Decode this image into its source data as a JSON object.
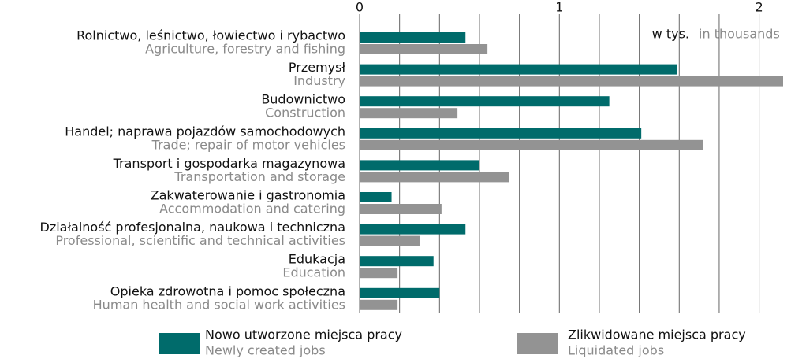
{
  "chart_data": {
    "type": "bar",
    "orientation": "horizontal",
    "categories": [
      "Rolnictwo, leśnictwo, łowiectwo i rybactwo",
      "Przemysł",
      "Budownictwo",
      "Handel;  naprawa pojazdów samochodowych",
      "Transport i gospodarka magazynowa",
      "Zakwaterowanie i gastronomia",
      "Działalność profesjonalna, naukowa i techniczna",
      "Edukacja",
      "Opieka zdrowotna i pomoc społeczna"
    ],
    "categories_en": [
      "Agriculture, forestry and fishing",
      "Industry",
      "Construction",
      "Trade; repair of motor vehicles",
      "Transportation and storage",
      "Accommodation and catering",
      "Professional, scientific and technical activities",
      "Education",
      "Human health and social work activities"
    ],
    "series": [
      {
        "name": "Nowo utworzone miejsca pracy",
        "name_en": "Newly created jobs",
        "color": "#006b6b",
        "values": [
          0.53,
          1.59,
          1.25,
          1.41,
          0.6,
          0.16,
          0.53,
          0.37,
          0.4
        ]
      },
      {
        "name": "Zlikwidowane miejsca pracy",
        "name_en": "Liquidated jobs",
        "color": "#939393",
        "values": [
          0.64,
          2.12,
          0.49,
          1.72,
          0.75,
          0.41,
          0.3,
          0.19,
          0.19
        ]
      }
    ],
    "unit_label": "w tys.",
    "unit_label_en": "in thousands",
    "xlim": [
      0,
      2.12
    ],
    "xticks": [
      0,
      1,
      2
    ],
    "minor_xticks": [
      0.2,
      0.4,
      0.6,
      0.8,
      1.2,
      1.4,
      1.6,
      1.8
    ],
    "grid": true
  }
}
